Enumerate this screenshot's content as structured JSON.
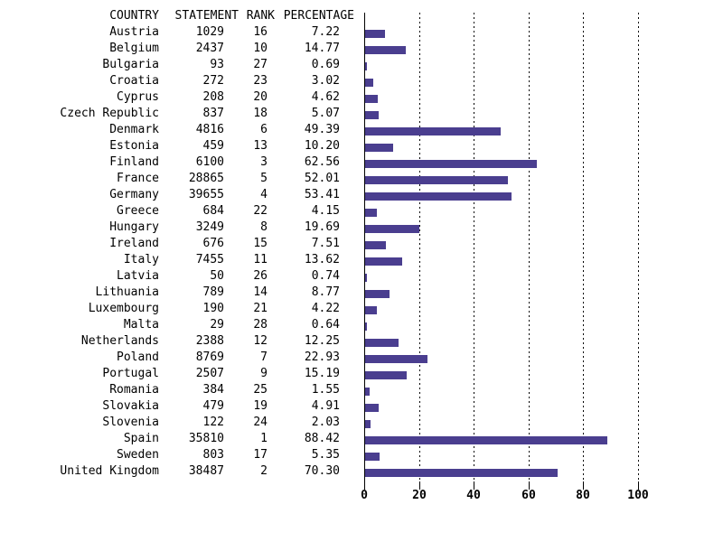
{
  "table": {
    "headers": [
      "COUNTRY",
      "STATEMENT",
      "RANK",
      "PERCENTAGE"
    ]
  },
  "chart_data": {
    "type": "bar",
    "orientation": "horizontal",
    "title": "",
    "xlabel": "",
    "ylabel": "",
    "categories": [
      "Austria",
      "Belgium",
      "Bulgaria",
      "Croatia",
      "Cyprus",
      "Czech Republic",
      "Denmark",
      "Estonia",
      "Finland",
      "France",
      "Germany",
      "Greece",
      "Hungary",
      "Ireland",
      "Italy",
      "Latvia",
      "Lithuania",
      "Luxembourg",
      "Malta",
      "Netherlands",
      "Poland",
      "Portugal",
      "Romania",
      "Slovakia",
      "Slovenia",
      "Spain",
      "Sweden",
      "United Kingdom"
    ],
    "series": [
      {
        "name": "STATEMENT",
        "values": [
          1029,
          2437,
          93,
          272,
          208,
          837,
          4816,
          459,
          6100,
          28865,
          39655,
          684,
          3249,
          676,
          7455,
          50,
          789,
          190,
          29,
          2388,
          8769,
          2507,
          384,
          479,
          122,
          35810,
          803,
          38487
        ]
      },
      {
        "name": "RANK",
        "values": [
          16,
          10,
          27,
          23,
          20,
          18,
          6,
          13,
          3,
          5,
          4,
          22,
          8,
          15,
          11,
          26,
          14,
          21,
          28,
          12,
          7,
          9,
          25,
          19,
          24,
          1,
          17,
          2
        ]
      },
      {
        "name": "PERCENTAGE",
        "values": [
          7.22,
          14.77,
          0.69,
          3.02,
          4.62,
          5.07,
          49.39,
          10.2,
          62.56,
          52.01,
          53.41,
          4.15,
          19.69,
          7.51,
          13.62,
          0.74,
          8.77,
          4.22,
          0.64,
          12.25,
          22.93,
          15.19,
          1.55,
          4.91,
          2.03,
          88.42,
          5.35,
          70.3
        ]
      }
    ],
    "bar_series": "PERCENTAGE",
    "x_ticks": [
      0,
      20,
      40,
      60,
      80,
      100
    ],
    "x_tick_labels": [
      "0",
      "20",
      "40",
      "60",
      "80",
      "100"
    ],
    "xlim": [
      0,
      100
    ],
    "grid": "vertical-dotted",
    "legend": "none",
    "bar_color": "#4a3e8f",
    "axis_color": "#000000",
    "text_color": "#000000",
    "background_color": "#ffffff"
  }
}
